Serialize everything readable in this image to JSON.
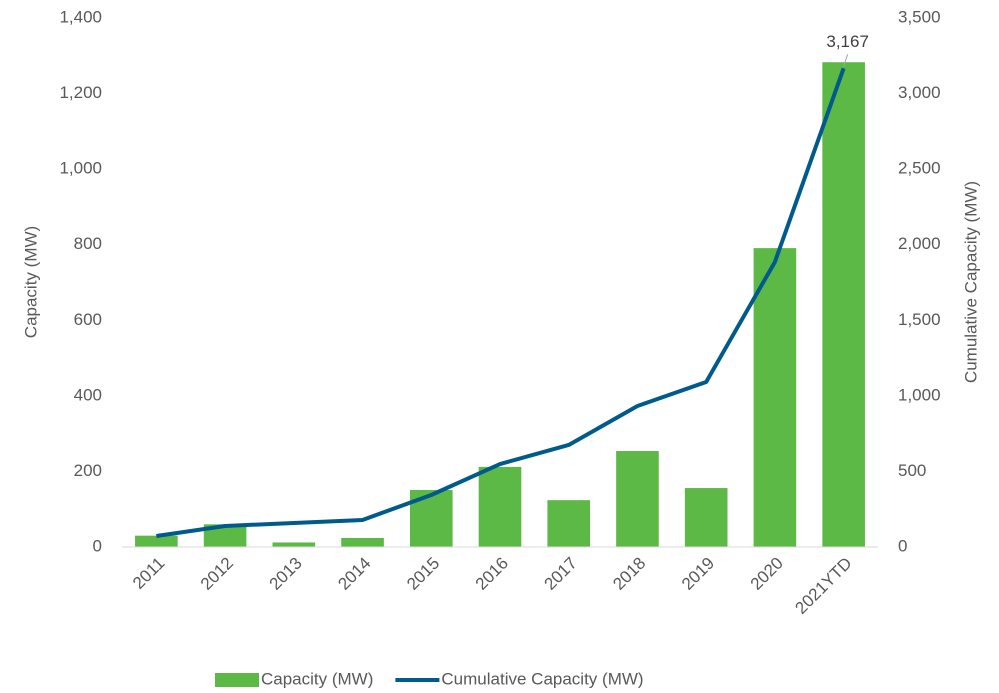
{
  "chart_data": {
    "type": "bar_line",
    "categories": [
      "2011",
      "2012",
      "2013",
      "2014",
      "2015",
      "2016",
      "2017",
      "2018",
      "2019",
      "2020",
      "2021YTD"
    ],
    "series": [
      {
        "name": "Capacity (MW)",
        "color": "#5cb946",
        "type": "bar",
        "values": [
          30,
          60,
          12,
          24,
          151,
          212,
          124,
          254,
          156,
          791,
          1283
        ]
      },
      {
        "name": "Cumulative Capacity (MW)",
        "color": "#005a8c",
        "type": "line",
        "axis": "y2",
        "values": [
          73,
          139,
          159,
          179,
          344,
          549,
          675,
          933,
          1092,
          1886,
          3167
        ],
        "value_labels": [
          null,
          null,
          null,
          null,
          null,
          null,
          null,
          null,
          null,
          null,
          "3,167"
        ]
      }
    ],
    "ylabel": "Capacity (MW)",
    "y2label": "Cumulative Capacity (MW)",
    "ylim": [
      0,
      1400
    ],
    "yticks": [
      0,
      200,
      400,
      600,
      800,
      {
        "value": 1000,
        "label": "1,000"
      },
      {
        "value": 1200,
        "label": "1,200"
      },
      {
        "value": 1400,
        "label": "1,400"
      }
    ],
    "y2lim": [
      0,
      3500
    ],
    "y2ticks": [
      0,
      500,
      {
        "value": 1000,
        "label": "1,000"
      },
      {
        "value": 1500,
        "label": "1,500"
      },
      {
        "value": 2000,
        "label": "2,000"
      },
      {
        "value": 2500,
        "label": "2,500"
      },
      {
        "value": 3000,
        "label": "3,000"
      },
      {
        "value": 3500,
        "label": "3,500"
      }
    ],
    "legend": "bottom"
  }
}
